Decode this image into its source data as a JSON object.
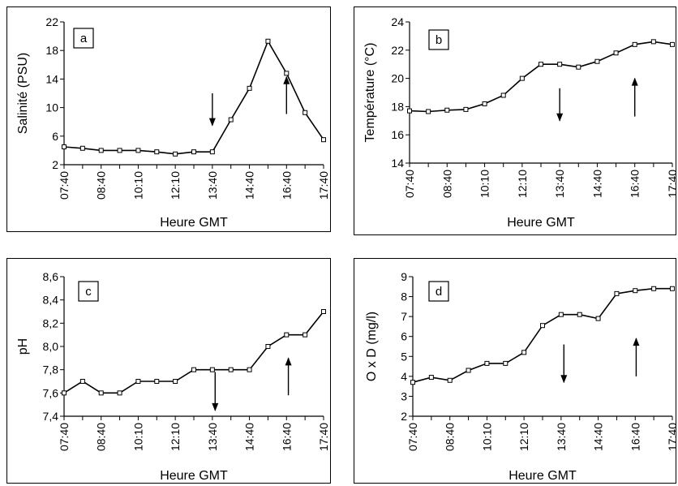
{
  "chart_data": [
    {
      "id": "a",
      "type": "line",
      "panel_label": "a",
      "xlabel": "Heure GMT",
      "ylabel": "Salinité (PSU)",
      "ylim": [
        2,
        22
      ],
      "yticks": [
        2,
        6,
        10,
        14,
        18,
        22
      ],
      "ytick_labels": [
        "2",
        "6",
        "10",
        "14",
        "18",
        "22"
      ],
      "xticks": [
        "07:40",
        "08:40",
        "10:10",
        "12:10",
        "13:40",
        "14:40",
        "16:40",
        "17:40"
      ],
      "series": [
        {
          "values": [
            4.5,
            4.3,
            4.0,
            4.0,
            4.0,
            3.8,
            3.5,
            3.8,
            3.8,
            8.3,
            12.7,
            19.3,
            14.8,
            9.3,
            5.5
          ]
        }
      ],
      "annotations": [
        {
          "type": "arrow-down",
          "x_index": 8,
          "y_top": 12.0,
          "y_bottom": 7.5
        },
        {
          "type": "arrow-up",
          "x_index": 12,
          "y_top": 14.3,
          "y_bottom": 9.1
        }
      ]
    },
    {
      "id": "b",
      "type": "line",
      "panel_label": "b",
      "xlabel": "Heure GMT",
      "ylabel": "Température (°C)",
      "ylim": [
        14,
        24
      ],
      "yticks": [
        14,
        16,
        18,
        20,
        22,
        24
      ],
      "ytick_labels": [
        "14",
        "16",
        "18",
        "20",
        "22",
        "24"
      ],
      "xticks": [
        "07:40",
        "08:40",
        "10:10",
        "12:10",
        "13:40",
        "14:40",
        "16:40",
        "17:40"
      ],
      "series": [
        {
          "values": [
            17.7,
            17.65,
            17.75,
            17.8,
            18.2,
            18.8,
            20.0,
            21.0,
            21.0,
            20.8,
            21.2,
            21.8,
            22.4,
            22.6,
            22.4
          ]
        }
      ],
      "annotations": [
        {
          "type": "arrow-down",
          "x_index": 8,
          "y_top": 19.3,
          "y_bottom": 17.0
        },
        {
          "type": "arrow-up",
          "x_index": 12,
          "y_top": 20.0,
          "y_bottom": 17.3
        }
      ]
    },
    {
      "id": "c",
      "type": "line",
      "panel_label": "c",
      "xlabel": "Heure GMT",
      "ylabel": "pH",
      "ylim": [
        7.4,
        8.6
      ],
      "yticks": [
        7.4,
        7.6,
        7.8,
        8.0,
        8.2,
        8.4,
        8.6
      ],
      "ytick_labels": [
        "7,4",
        "7,6",
        "7,8",
        "8,0",
        "8,2",
        "8,4",
        "8,6"
      ],
      "xticks": [
        "07:40",
        "08:40",
        "10:10",
        "12:10",
        "13:40",
        "14:40",
        "16:40",
        "17:40"
      ],
      "series": [
        {
          "values": [
            7.6,
            7.7,
            7.6,
            7.6,
            7.7,
            7.7,
            7.7,
            7.8,
            7.8,
            7.8,
            7.8,
            8.0,
            8.1,
            8.1,
            8.3
          ]
        }
      ],
      "annotations": [
        {
          "type": "arrow-down",
          "x_index": 8.15,
          "y_top": 7.78,
          "y_bottom": 7.45
        },
        {
          "type": "arrow-up",
          "x_index": 12.1,
          "y_top": 7.9,
          "y_bottom": 7.58
        }
      ]
    },
    {
      "id": "d",
      "type": "line",
      "panel_label": "d",
      "xlabel": "Heure GMT",
      "ylabel": "O x D (mg/l)",
      "ylim": [
        2,
        9
      ],
      "yticks": [
        2,
        3,
        4,
        5,
        6,
        7,
        8,
        9
      ],
      "ytick_labels": [
        "2",
        "3",
        "4",
        "5",
        "6",
        "7",
        "8",
        "9"
      ],
      "xticks": [
        "07:40",
        "08:40",
        "10:10",
        "12:10",
        "13:40",
        "14:40",
        "16:40",
        "17:40"
      ],
      "series": [
        {
          "values": [
            3.7,
            3.95,
            3.8,
            4.3,
            4.65,
            4.65,
            5.2,
            6.55,
            7.1,
            7.1,
            6.9,
            8.15,
            8.3,
            8.4,
            8.4
          ]
        }
      ],
      "annotations": [
        {
          "type": "arrow-down",
          "x_index": 8.15,
          "y_top": 5.6,
          "y_bottom": 3.7
        },
        {
          "type": "arrow-up",
          "x_index": 12.05,
          "y_top": 5.9,
          "y_bottom": 4.0
        }
      ]
    }
  ]
}
